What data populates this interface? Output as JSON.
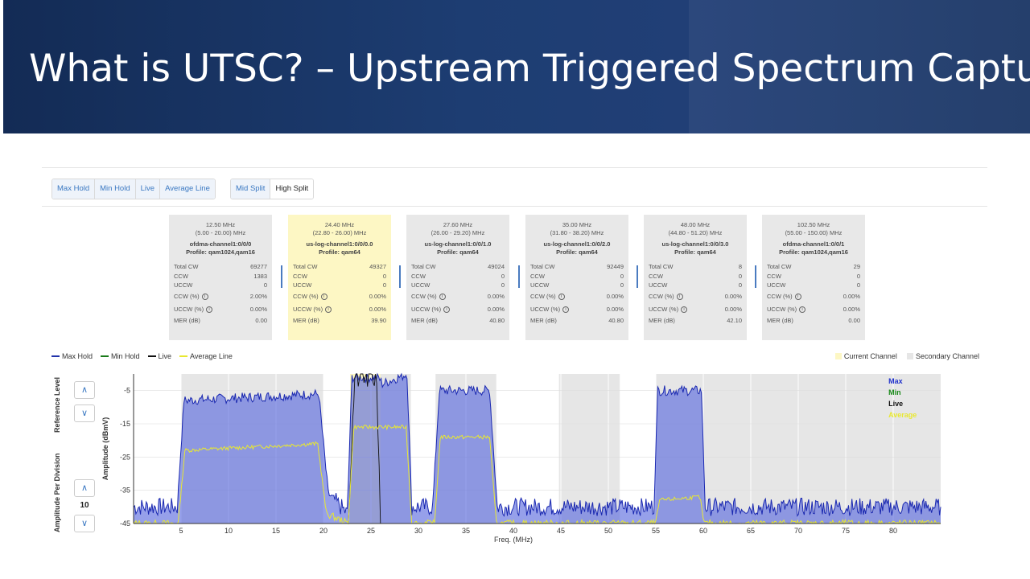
{
  "slide": {
    "title": "What is UTSC? – Upstream Triggered Spectrum Capture"
  },
  "toolbar": {
    "trace_buttons": [
      "Max Hold",
      "Min Hold",
      "Live",
      "Average Line"
    ],
    "split_buttons": [
      "Mid Split",
      "High Split"
    ],
    "active_split": "High Split"
  },
  "channels": [
    {
      "freq": "12.50 MHz",
      "range": "(5.00 - 20.00) MHz",
      "name": "ofdma-channel1:0/0/0",
      "profile": "Profile: qam1024,qam16",
      "current": false,
      "stats": {
        "total_cw": "69277",
        "ccw": "1383",
        "uccw": "0",
        "ccw_pct": "2.00%",
        "uccw_pct": "0.00%",
        "mer": "0.00"
      }
    },
    {
      "freq": "24.40 MHz",
      "range": "(22.80 - 26.00) MHz",
      "name": "us-log-channel1:0/0/0.0",
      "profile": "Profile: qam64",
      "current": true,
      "stats": {
        "total_cw": "49327",
        "ccw": "0",
        "uccw": "0",
        "ccw_pct": "0.00%",
        "uccw_pct": "0.00%",
        "mer": "39.90"
      }
    },
    {
      "freq": "27.60 MHz",
      "range": "(26.00 - 29.20) MHz",
      "name": "us-log-channel1:0/0/1.0",
      "profile": "Profile: qam64",
      "current": false,
      "stats": {
        "total_cw": "49024",
        "ccw": "0",
        "uccw": "0",
        "ccw_pct": "0.00%",
        "uccw_pct": "0.00%",
        "mer": "40.80"
      }
    },
    {
      "freq": "35.00 MHz",
      "range": "(31.80 - 38.20) MHz",
      "name": "us-log-channel1:0/0/2.0",
      "profile": "Profile: qam64",
      "current": false,
      "stats": {
        "total_cw": "92449",
        "ccw": "0",
        "uccw": "0",
        "ccw_pct": "0.00%",
        "uccw_pct": "0.00%",
        "mer": "40.80"
      }
    },
    {
      "freq": "48.00 MHz",
      "range": "(44.80 - 51.20) MHz",
      "name": "us-log-channel1:0/0/3.0",
      "profile": "Profile: qam64",
      "current": false,
      "stats": {
        "total_cw": "8",
        "ccw": "0",
        "uccw": "0",
        "ccw_pct": "0.00%",
        "uccw_pct": "0.00%",
        "mer": "42.10"
      }
    },
    {
      "freq": "102.50 MHz",
      "range": "(55.00 - 150.00) MHz",
      "name": "ofdma-channel1:0/0/1",
      "profile": "Profile: qam1024,qam16",
      "current": false,
      "stats": {
        "total_cw": "29",
        "ccw": "0",
        "uccw": "0",
        "ccw_pct": "0.00%",
        "uccw_pct": "0.00%",
        "mer": "0.00"
      }
    }
  ],
  "stat_labels": {
    "total_cw": "Total CW",
    "ccw": "CCW",
    "uccw": "UCCW",
    "ccw_pct": "CCW (%)",
    "uccw_pct": "UCCW (%)",
    "mer": "MER (dB)"
  },
  "legend": {
    "traces": [
      {
        "label": "Max Hold",
        "color": "#2233aa"
      },
      {
        "label": "Min Hold",
        "color": "#1a7a1a"
      },
      {
        "label": "Live",
        "color": "#111111"
      },
      {
        "label": "Average Line",
        "color": "#e8e830"
      }
    ],
    "regions": [
      {
        "label": "Current Channel",
        "color": "#fdf7c4"
      },
      {
        "label": "Secondary Channel",
        "color": "#e6e6e6"
      }
    ]
  },
  "controls": {
    "reference_level_label": "Reference Level",
    "amplitude_label": "Amplitude Per Division",
    "amplitude_value": "10",
    "up_glyph": "∧",
    "down_glyph": "∨"
  },
  "chart_data": {
    "type": "area",
    "xlabel": "Freq. (MHz)",
    "ylabel": "Amplitude (dBmV)",
    "xlim": [
      0,
      85
    ],
    "ylim": [
      -45,
      0
    ],
    "x_ticks": [
      5,
      10,
      15,
      20,
      25,
      30,
      35,
      40,
      45,
      50,
      55,
      60,
      65,
      70,
      75,
      80
    ],
    "y_ticks": [
      -5,
      -15,
      -25,
      -35,
      -45
    ],
    "grid": true,
    "inline_legend": [
      {
        "label": "Max",
        "color": "#2233cc"
      },
      {
        "label": "Min",
        "color": "#1a8a1a"
      },
      {
        "label": "Live",
        "color": "#111111"
      },
      {
        "label": "Average",
        "color": "#e8e830"
      }
    ],
    "secondary_regions": [
      [
        5,
        20
      ],
      [
        22.8,
        29.2
      ],
      [
        31.8,
        38.2
      ],
      [
        44.8,
        51.2
      ],
      [
        55,
        85
      ]
    ],
    "current_region": [
      22.8,
      26
    ],
    "max_hold_profile": [
      [
        0,
        -40
      ],
      [
        4.6,
        -40
      ],
      [
        5.3,
        -8
      ],
      [
        19.5,
        -6
      ],
      [
        20.5,
        -36
      ],
      [
        22.5,
        -42
      ],
      [
        23,
        -1
      ],
      [
        25.8,
        -1
      ],
      [
        26.2,
        -3
      ],
      [
        28.8,
        0
      ],
      [
        29.3,
        -40
      ],
      [
        31.5,
        -40
      ],
      [
        32.2,
        -5
      ],
      [
        37.5,
        -5
      ],
      [
        38.3,
        -40
      ],
      [
        54.8,
        -40
      ],
      [
        55.2,
        -5
      ],
      [
        59.8,
        -5
      ],
      [
        60.2,
        -40
      ],
      [
        85,
        -40
      ]
    ],
    "average_profile": [
      [
        0,
        -45
      ],
      [
        4.7,
        -45
      ],
      [
        5.4,
        -23
      ],
      [
        19.4,
        -21
      ],
      [
        20.3,
        -42
      ],
      [
        22.6,
        -45
      ],
      [
        23.2,
        -16
      ],
      [
        25.7,
        -16
      ],
      [
        26.2,
        -16
      ],
      [
        28.7,
        -16
      ],
      [
        29.3,
        -45
      ],
      [
        31.7,
        -45
      ],
      [
        32.3,
        -19
      ],
      [
        37.5,
        -19
      ],
      [
        38.2,
        -45
      ],
      [
        55,
        -45
      ],
      [
        55.4,
        -38
      ],
      [
        59.6,
        -37
      ],
      [
        60.1,
        -45
      ],
      [
        85,
        -45
      ]
    ],
    "live_profile": [
      [
        22.6,
        -45
      ],
      [
        23.3,
        -1
      ],
      [
        25.6,
        -1
      ],
      [
        26,
        -45
      ]
    ]
  }
}
